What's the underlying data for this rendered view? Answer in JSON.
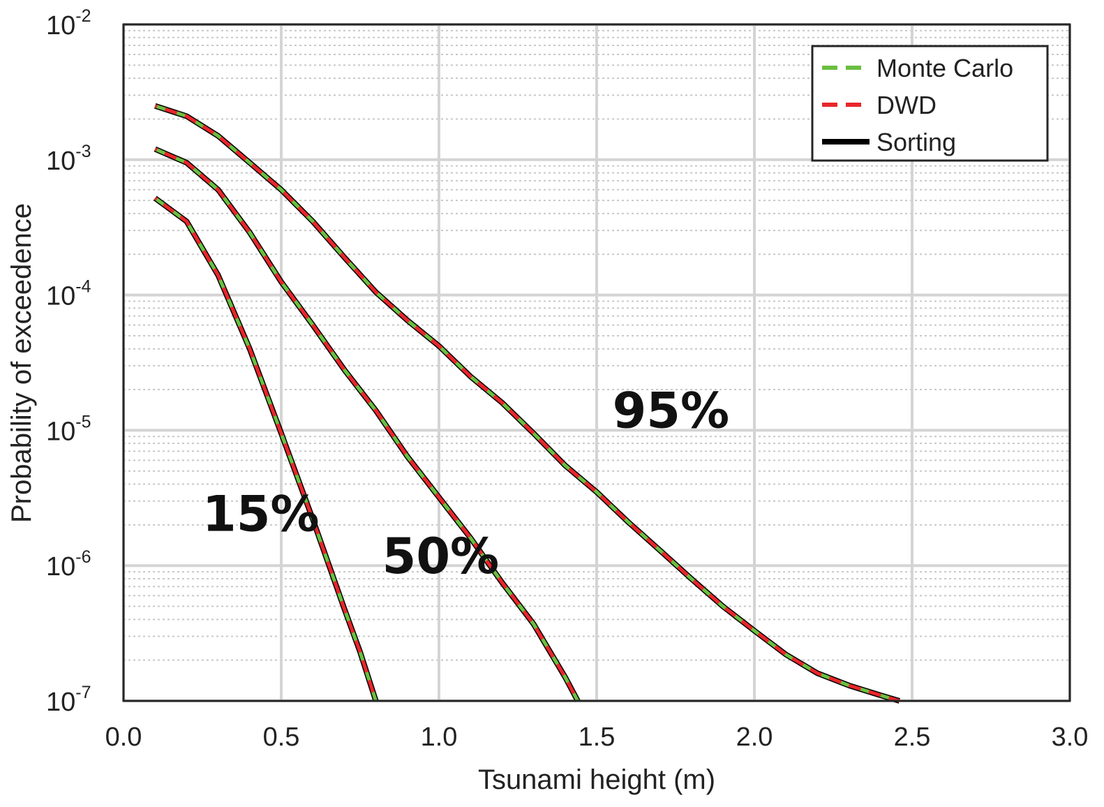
{
  "chart_data": {
    "type": "line",
    "xlabel": "Tsunami height (m)",
    "ylabel": "Probability of exceedence",
    "xlim": [
      0.0,
      3.0
    ],
    "ylim": [
      1e-07,
      0.01
    ],
    "yscale": "log",
    "grid": true,
    "minor_grid": true,
    "legend_position": "top-right",
    "x_ticks": [
      0.0,
      0.5,
      1.0,
      1.5,
      2.0,
      2.5,
      3.0
    ],
    "x_tick_labels": [
      "0.0",
      "0.5",
      "1.0",
      "1.5",
      "2.0",
      "2.5",
      "3.0"
    ],
    "y_ticks": [
      1e-07,
      1e-06,
      1e-05,
      0.0001,
      0.001,
      0.01
    ],
    "y_tick_labels": [
      {
        "base": "10",
        "exp": "-7"
      },
      {
        "base": "10",
        "exp": "-6"
      },
      {
        "base": "10",
        "exp": "-5"
      },
      {
        "base": "10",
        "exp": "-4"
      },
      {
        "base": "10",
        "exp": "-3"
      },
      {
        "base": "10",
        "exp": "-2"
      }
    ],
    "legend": [
      {
        "name": "Monte Carlo",
        "color": "#6abf40",
        "style": "dashed"
      },
      {
        "name": "DWD",
        "color": "#e8262b",
        "style": "dashed"
      },
      {
        "name": "Sorting",
        "color": "#000000",
        "style": "solid"
      }
    ],
    "curves": [
      {
        "label": "95%",
        "label_at": [
          1.55,
          1.05e-05
        ],
        "points": [
          [
            0.1,
            0.0025
          ],
          [
            0.2,
            0.0021
          ],
          [
            0.3,
            0.0015
          ],
          [
            0.4,
            0.00095
          ],
          [
            0.5,
            0.0006
          ],
          [
            0.6,
            0.00035
          ],
          [
            0.7,
            0.00019
          ],
          [
            0.8,
            0.000105
          ],
          [
            0.9,
            6.5e-05
          ],
          [
            1.0,
            4.2e-05
          ],
          [
            1.1,
            2.5e-05
          ],
          [
            1.2,
            1.6e-05
          ],
          [
            1.3,
            9.5e-06
          ],
          [
            1.4,
            5.5e-06
          ],
          [
            1.5,
            3.5e-06
          ],
          [
            1.6,
            2.1e-06
          ],
          [
            1.7,
            1.3e-06
          ],
          [
            1.8,
            8e-07
          ],
          [
            1.9,
            5e-07
          ],
          [
            2.0,
            3.3e-07
          ],
          [
            2.1,
            2.2e-07
          ],
          [
            2.2,
            1.6e-07
          ],
          [
            2.3,
            1.3e-07
          ],
          [
            2.4,
            1.1e-07
          ],
          [
            2.46,
            1e-07
          ]
        ]
      },
      {
        "label": "50%",
        "label_at": [
          0.82,
          8.8e-07
        ],
        "points": [
          [
            0.1,
            0.0012
          ],
          [
            0.2,
            0.00095
          ],
          [
            0.3,
            0.0006
          ],
          [
            0.4,
            0.00029
          ],
          [
            0.5,
            0.000125
          ],
          [
            0.6,
            6e-05
          ],
          [
            0.7,
            2.8e-05
          ],
          [
            0.8,
            1.4e-05
          ],
          [
            0.9,
            6.4e-06
          ],
          [
            1.0,
            3.2e-06
          ],
          [
            1.1,
            1.6e-06
          ],
          [
            1.2,
            7.5e-07
          ],
          [
            1.3,
            3.7e-07
          ],
          [
            1.4,
            1.5e-07
          ],
          [
            1.44,
            1e-07
          ]
        ]
      },
      {
        "label": "15%",
        "label_at": [
          0.25,
          1.8e-06
        ],
        "points": [
          [
            0.1,
            0.00052
          ],
          [
            0.2,
            0.00035
          ],
          [
            0.3,
            0.00014
          ],
          [
            0.4,
            4e-05
          ],
          [
            0.5,
            9.5e-06
          ],
          [
            0.6,
            2.2e-06
          ],
          [
            0.7,
            4.8e-07
          ],
          [
            0.75,
            2.3e-07
          ],
          [
            0.8,
            1e-07
          ]
        ]
      }
    ]
  }
}
